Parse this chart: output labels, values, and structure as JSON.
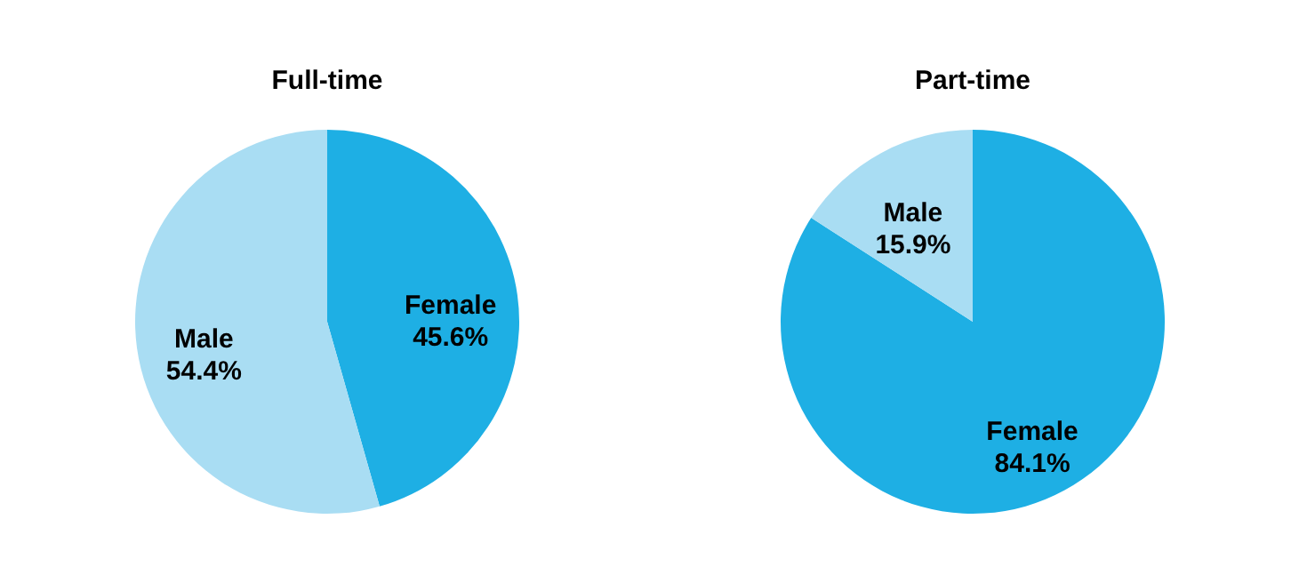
{
  "chart_data": [
    {
      "type": "pie",
      "title": "Full-time",
      "categories": [
        "Female",
        "Male"
      ],
      "values": [
        45.6,
        54.4
      ],
      "colors": [
        "#1eafe4",
        "#a9ddf3"
      ],
      "value_labels": [
        "45.6%",
        "54.4%"
      ]
    },
    {
      "type": "pie",
      "title": "Part-time",
      "categories": [
        "Female",
        "Male"
      ],
      "values": [
        84.1,
        15.9
      ],
      "colors": [
        "#1eafe4",
        "#a9ddf3"
      ],
      "value_labels": [
        "84.1%",
        "15.9%"
      ]
    }
  ]
}
